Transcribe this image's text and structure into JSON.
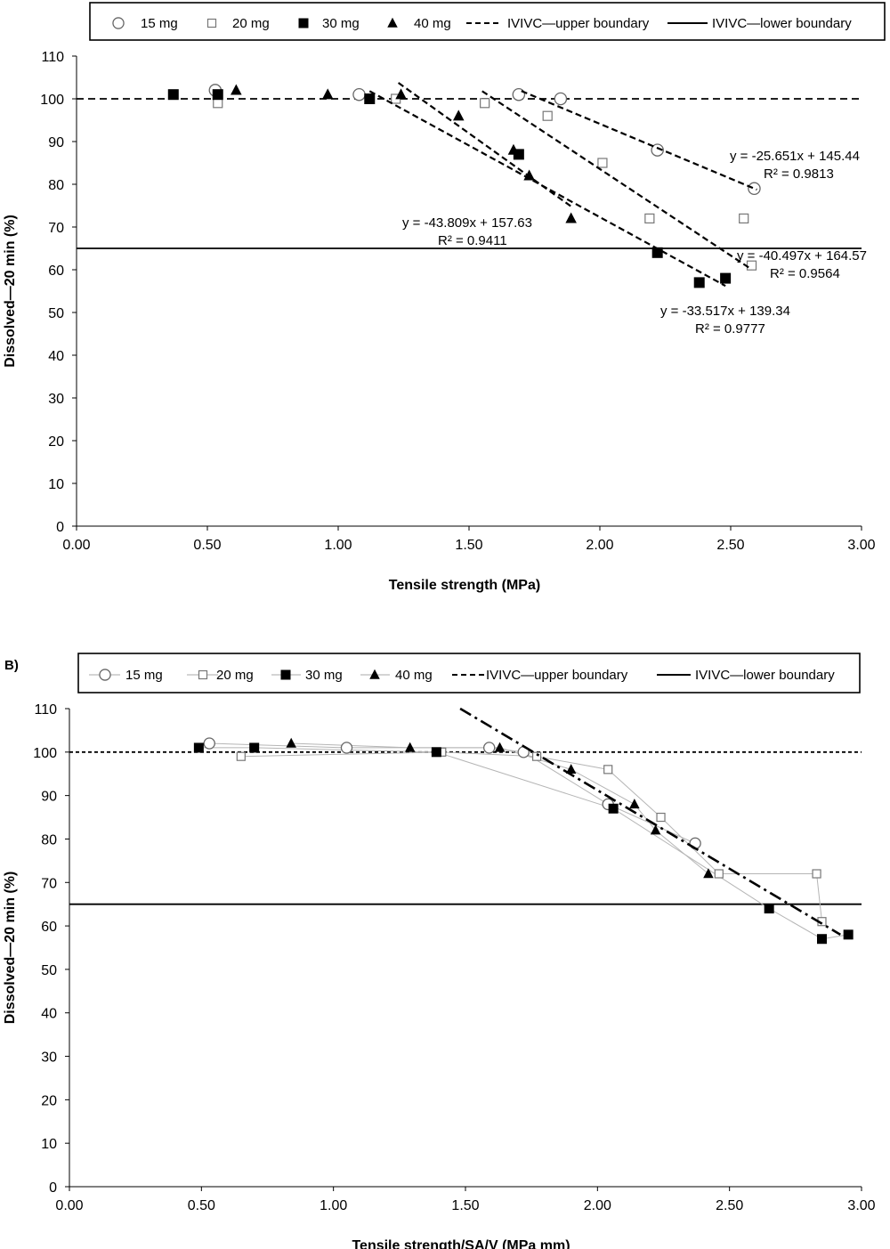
{
  "chart_data": [
    {
      "type": "scatter",
      "panel_label": "",
      "xlabel": "Tensile strength (MPa)",
      "ylabel": "Dissolved—20 min (%)",
      "xlim": [
        0,
        3
      ],
      "ylim": [
        0,
        110
      ],
      "xticks": [
        "0.00",
        "0.50",
        "1.00",
        "1.50",
        "2.00",
        "2.50",
        "3.00"
      ],
      "yticks": [
        "0",
        "10",
        "20",
        "30",
        "40",
        "50",
        "60",
        "70",
        "80",
        "90",
        "100",
        "110"
      ],
      "legend": [
        "15 mg",
        "20 mg",
        "30 mg",
        "40 mg",
        "IVIVC—upper boundary",
        "IVIVC—lower boundary"
      ],
      "legend_position": "top",
      "grid": false,
      "series": [
        {
          "name": "15 mg",
          "marker": "circle-open",
          "x": [
            0.53,
            1.08,
            1.69,
            1.85,
            2.22,
            2.59
          ],
          "y": [
            102,
            101,
            101,
            100,
            88,
            79
          ]
        },
        {
          "name": "20 mg",
          "marker": "square-open",
          "x": [
            0.54,
            1.22,
            1.56,
            1.8,
            2.01,
            2.19,
            2.55,
            2.58
          ],
          "y": [
            99,
            100,
            99,
            96,
            85,
            72,
            72,
            61
          ]
        },
        {
          "name": "30 mg",
          "marker": "square-filled",
          "x": [
            0.37,
            0.54,
            1.12,
            1.69,
            2.22,
            2.38,
            2.48
          ],
          "y": [
            101,
            101,
            100,
            87,
            64,
            57,
            58
          ]
        },
        {
          "name": "40 mg",
          "marker": "triangle-filled",
          "x": [
            0.61,
            0.96,
            1.24,
            1.46,
            1.67,
            1.73,
            1.89
          ],
          "y": [
            102,
            101,
            101,
            96,
            88,
            82,
            72
          ]
        }
      ],
      "reference_lines": [
        {
          "name": "IVIVC—upper boundary",
          "y": 100,
          "style": "dashed"
        },
        {
          "name": "IVIVC—lower boundary",
          "y": 65,
          "style": "solid"
        }
      ],
      "trendlines": [
        {
          "series": "15 mg",
          "slope": -25.651,
          "intercept": 145.44,
          "x_range": [
            1.7,
            2.6
          ],
          "equation": "y = -25.651x + 145.44",
          "r2": "R² = 0.9813"
        },
        {
          "series": "20 mg",
          "slope": -40.497,
          "intercept": 164.57,
          "x_range": [
            1.55,
            2.58
          ],
          "equation": "y = -40.497x + 164.57",
          "r2": "R² = 0.9564"
        },
        {
          "series": "30 mg",
          "slope": -33.517,
          "intercept": 139.34,
          "x_range": [
            1.12,
            2.48
          ],
          "equation": "y = -33.517x + 139.34",
          "r2": "R² = 0.9777"
        },
        {
          "series": "40 mg",
          "slope": -43.809,
          "intercept": 157.63,
          "x_range": [
            1.23,
            1.89
          ],
          "equation": "y = -43.809x + 157.63",
          "r2": "R² = 0.9411"
        }
      ]
    },
    {
      "type": "line",
      "panel_label": "B)",
      "xlabel": "Tensile strength/SA/V (MPa mm)",
      "ylabel": "Dissolved—20 min (%)",
      "xlim": [
        0,
        3
      ],
      "ylim": [
        0,
        110
      ],
      "xticks": [
        "0.00",
        "0.50",
        "1.00",
        "1.50",
        "2.00",
        "2.50",
        "3.00"
      ],
      "yticks": [
        "0",
        "10",
        "20",
        "30",
        "40",
        "50",
        "60",
        "70",
        "80",
        "90",
        "100",
        "110"
      ],
      "legend": [
        "15 mg",
        "20 mg",
        "30 mg",
        "40 mg",
        "IVIVC—upper boundary",
        "IVIVC—lower boundary"
      ],
      "legend_position": "top",
      "grid": false,
      "series": [
        {
          "name": "15 mg",
          "marker": "circle-open",
          "x": [
            0.53,
            1.05,
            1.59,
            1.72,
            2.04,
            2.37
          ],
          "y": [
            102,
            101,
            101,
            100,
            88,
            79
          ]
        },
        {
          "name": "20 mg",
          "marker": "square-open",
          "x": [
            0.65,
            1.41,
            1.77,
            2.04,
            2.24,
            2.46,
            2.83,
            2.85
          ],
          "y": [
            99,
            100,
            99,
            96,
            85,
            72,
            72,
            61
          ]
        },
        {
          "name": "30 mg",
          "marker": "square-filled",
          "x": [
            0.49,
            0.7,
            1.39,
            2.06,
            2.65,
            2.85,
            2.95
          ],
          "y": [
            101,
            101,
            100,
            87,
            64,
            57,
            58
          ]
        },
        {
          "name": "40 mg",
          "marker": "triangle-filled",
          "x": [
            0.84,
            1.29,
            1.63,
            1.9,
            2.14,
            2.22,
            2.42
          ],
          "y": [
            102,
            101,
            101,
            96,
            88,
            82,
            72
          ]
        }
      ],
      "reference_lines": [
        {
          "name": "IVIVC—upper boundary",
          "y": 100,
          "style": "dashed"
        },
        {
          "name": "IVIVC—lower boundary",
          "y": 65,
          "style": "solid"
        }
      ],
      "trendlines": [
        {
          "series": "combined",
          "x_range": [
            1.48,
            2.92
          ],
          "y_range": [
            110,
            58
          ],
          "style": "dash-dot"
        }
      ]
    }
  ]
}
